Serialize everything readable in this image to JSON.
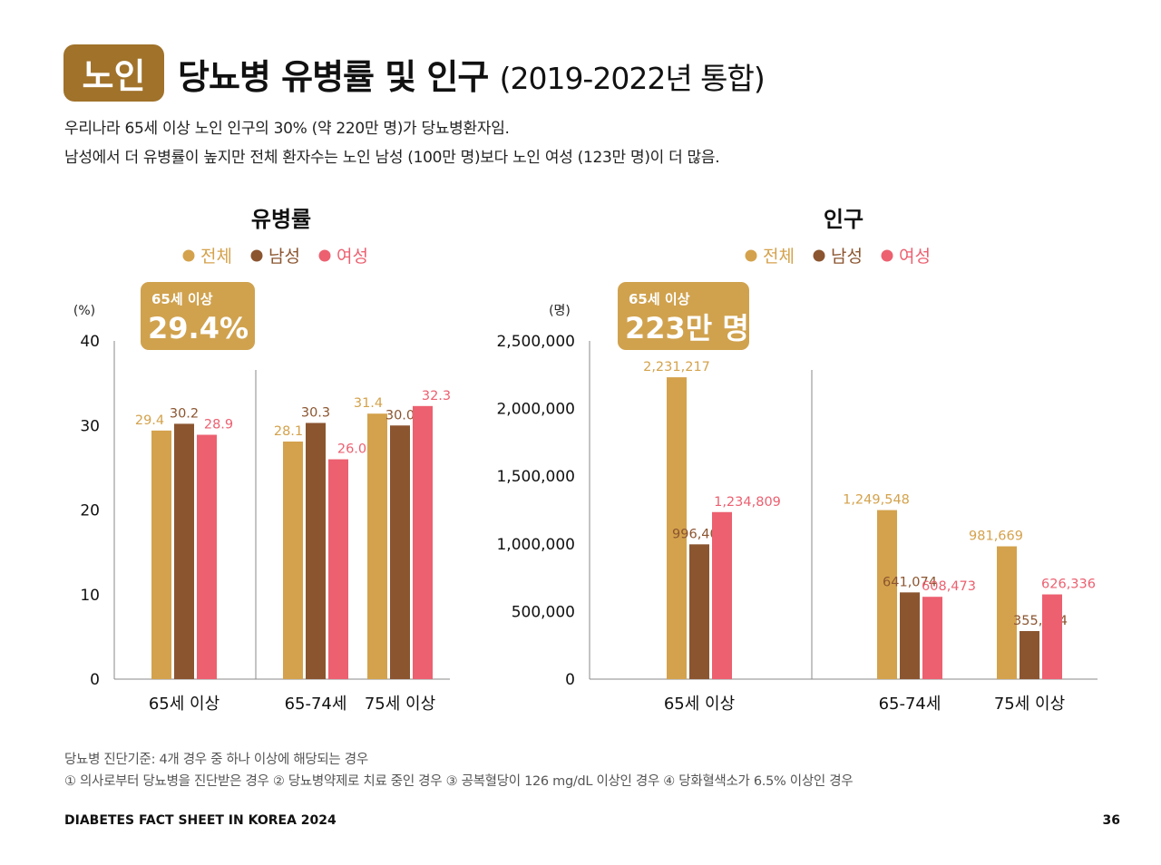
{
  "header": {
    "badge": "노인",
    "title": "당뇨병 유병률 및 인구",
    "title_sub": "(2019-2022년 통합)",
    "desc_lines": [
      "우리나라 65세 이상 노인 인구의 30% (약 220만 명)가 당뇨병환자임.",
      "남성에서 더 유병률이 높지만 전체 환자수는 노인 남성 (100만 명)보다 노인 여성 (123만 명)이 더 많음."
    ]
  },
  "colors": {
    "badge": "#A0722A",
    "total": "#D4A24C",
    "male": "#8B5530",
    "female": "#EC6070"
  },
  "chart_data": [
    {
      "type": "bar",
      "title": "유병률",
      "ylabel": "(%)",
      "ylim": [
        0,
        40
      ],
      "yticks": [
        "0",
        "10",
        "20",
        "30",
        "40"
      ],
      "categories": [
        "65세 이상",
        "65-74세",
        "75세 이상"
      ],
      "legend": "top",
      "series": [
        {
          "name": "전체",
          "values": [
            29.4,
            28.1,
            31.4
          ],
          "labels": [
            "29.4",
            "28.1",
            "31.4"
          ]
        },
        {
          "name": "남성",
          "values": [
            30.2,
            30.3,
            30.0
          ],
          "labels": [
            "30.2",
            "30.3",
            "30.0"
          ]
        },
        {
          "name": "여성",
          "values": [
            28.9,
            26.0,
            32.3
          ],
          "labels": [
            "28.9",
            "26.0",
            "32.3"
          ]
        }
      ],
      "callout": {
        "label": "65세 이상",
        "value": "29.4%"
      }
    },
    {
      "type": "bar",
      "title": "인구",
      "ylabel": "(명)",
      "ylim": [
        0,
        2500000
      ],
      "yticks": [
        "0",
        "500,000",
        "1,000,000",
        "1,500,000",
        "2,000,000",
        "2,500,000"
      ],
      "categories": [
        "65세 이상",
        "65-74세",
        "75세 이상"
      ],
      "legend": "top",
      "series": [
        {
          "name": "전체",
          "values": [
            2231217,
            1249548,
            981669
          ],
          "labels": [
            "2,231,217",
            "1,249,548",
            "981,669"
          ]
        },
        {
          "name": "남성",
          "values": [
            996408,
            641074,
            355334
          ],
          "labels": [
            "996,408",
            "641,074",
            "355,334"
          ]
        },
        {
          "name": "여성",
          "values": [
            1234809,
            608473,
            626336
          ],
          "labels": [
            "1,234,809",
            "608,473",
            "626,336"
          ]
        }
      ],
      "callout": {
        "label": "65세 이상",
        "value": "223만 명"
      }
    }
  ],
  "notes": [
    "당뇨병 진단기준: 4개 경우 중 하나 이상에 해당되는 경우",
    "① 의사로부터 당뇨병을 진단받은 경우 ② 당뇨병약제로 치료 중인 경우 ③ 공복혈당이 126 mg/dL 이상인 경우 ④ 당화혈색소가 6.5% 이상인 경우"
  ],
  "footer": {
    "left": "DIABETES FACT SHEET IN KOREA 2024",
    "page": "36"
  }
}
